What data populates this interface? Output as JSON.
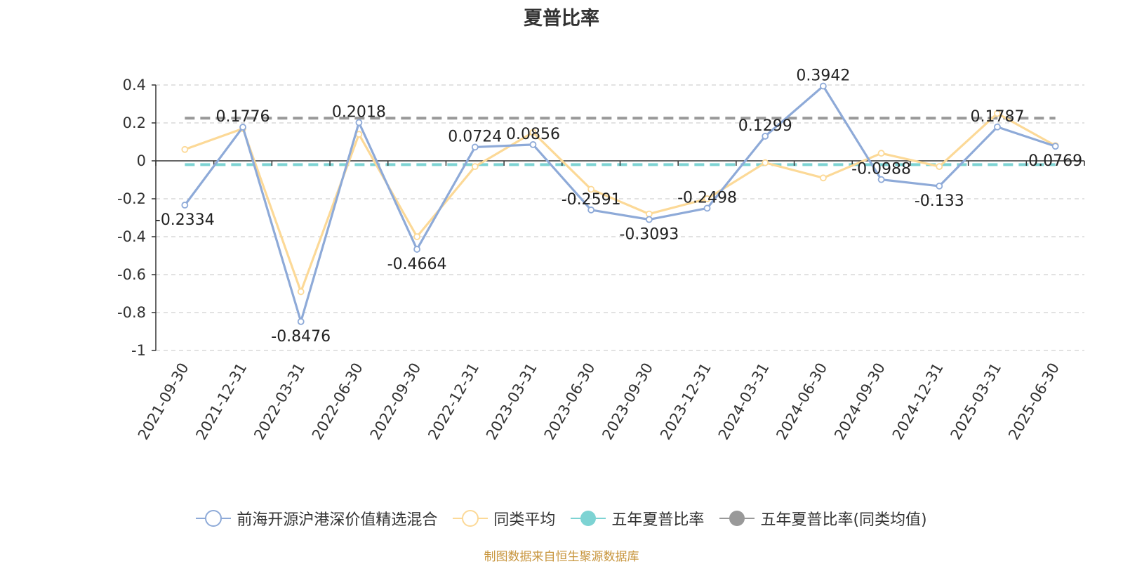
{
  "title": "夏普比率",
  "source": "制图数据来自恒生聚源数据库",
  "colors": {
    "fund": "#8eaad8",
    "peer": "#fcd997",
    "five_year": "#7dd3d3",
    "five_year_peer": "#999999"
  },
  "legend": [
    {
      "label": "前海开源沪港深价值精选混合",
      "color": "#8eaad8",
      "marker": "hollow-circle"
    },
    {
      "label": "同类平均",
      "color": "#fcd997",
      "marker": "hollow-circle"
    },
    {
      "label": "五年夏普比率",
      "color": "#7dd3d3",
      "marker": "filled-circle"
    },
    {
      "label": "五年夏普比率(同类均值)",
      "color": "#999999",
      "marker": "filled-circle"
    }
  ],
  "chart_data": {
    "type": "line",
    "title": "夏普比率",
    "categories": [
      "2021-09-30",
      "2021-12-31",
      "2022-03-31",
      "2022-06-30",
      "2022-09-30",
      "2022-12-31",
      "2023-03-31",
      "2023-06-30",
      "2023-09-30",
      "2023-12-31",
      "2024-03-31",
      "2024-06-30",
      "2024-09-30",
      "2024-12-31",
      "2025-03-31",
      "2025-06-30"
    ],
    "y_ticks": [
      "0.4",
      "0.2",
      "0",
      "-0.2",
      "-0.4",
      "-0.6",
      "-0.8",
      "-1"
    ],
    "ylim": [
      -1,
      0.4
    ],
    "grid": true,
    "legend_position": "bottom",
    "series": [
      {
        "name": "前海开源沪港深价值精选混合",
        "values": [
          -0.2334,
          0.1776,
          -0.8476,
          0.2018,
          -0.4664,
          0.0724,
          0.0856,
          -0.2591,
          -0.3093,
          -0.2498,
          0.1299,
          0.3942,
          -0.0988,
          -0.133,
          0.1787,
          0.0769
        ],
        "labels": [
          "-0.2334",
          "0.1776",
          "-0.8476",
          "0.2018",
          "-0.4664",
          "0.0724",
          "0.0856",
          "-0.2591",
          "-0.3093",
          "-0.2498",
          "0.1299",
          "0.3942",
          "-0.0988",
          "-0.133",
          "0.1787",
          "0.0769"
        ]
      },
      {
        "name": "同类平均",
        "values": [
          0.06,
          0.17,
          -0.69,
          0.14,
          -0.4,
          -0.03,
          0.15,
          -0.15,
          -0.28,
          -0.2,
          -0.01,
          -0.09,
          0.04,
          -0.03,
          0.25,
          0.08
        ]
      }
    ],
    "reference_lines": [
      {
        "name": "五年夏普比率",
        "value": -0.02
      },
      {
        "name": "五年夏普比率(同类均值)",
        "value": 0.225
      }
    ]
  }
}
